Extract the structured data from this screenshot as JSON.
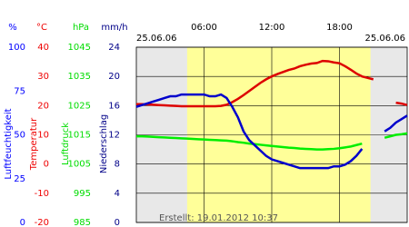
{
  "chart_data": {
    "type": "line",
    "date_left": "25.06.06",
    "date_right": "25.06.06",
    "created": "Erstellt: 19.01.2012 10:37",
    "xlim": [
      0,
      24
    ],
    "xticks": [
      {
        "value": 6,
        "label": "06:00"
      },
      {
        "value": 12,
        "label": "12:00"
      },
      {
        "value": 18,
        "label": "18:00"
      }
    ],
    "daylight": [
      4.5,
      20.75
    ],
    "axes": [
      {
        "unit": "%",
        "label": "Luftfeuchtigkeit",
        "color": "#0000ff",
        "ylim": [
          0,
          100
        ],
        "yticks": [
          0,
          25,
          50,
          75,
          100
        ]
      },
      {
        "unit": "°C",
        "label": "Temperatur",
        "color": "#ee0000",
        "ylim": [
          -20,
          40
        ],
        "yticks": [
          -20,
          -10,
          0,
          10,
          20,
          30,
          40
        ]
      },
      {
        "unit": "hPa",
        "label": "Luftdruck",
        "color": "#00dd00",
        "ylim": [
          985,
          1045
        ],
        "yticks": [
          985,
          995,
          1005,
          1015,
          1025,
          1035,
          1045
        ]
      },
      {
        "unit": "mm/h",
        "label": "Niederschlag",
        "color": "#000088",
        "ylim": [
          0,
          24
        ],
        "yticks": [
          0,
          4,
          8,
          12,
          16,
          20,
          24
        ]
      }
    ],
    "x": [
      0,
      0.5,
      1,
      1.5,
      2,
      2.5,
      3,
      3.5,
      4,
      4.5,
      5,
      5.5,
      6,
      6.5,
      7,
      7.5,
      8,
      8.5,
      9,
      9.5,
      10,
      10.5,
      11,
      11.5,
      12,
      12.5,
      13,
      13.5,
      14,
      14.5,
      15,
      15.5,
      16,
      16.5,
      17,
      17.5,
      18,
      18.5,
      19,
      19.5,
      20,
      20.5,
      21,
      21.5,
      22,
      22.5,
      23,
      23.5,
      24
    ],
    "series": [
      {
        "axis": 1,
        "color": "#dd0000",
        "values": [
          20.5,
          20.5,
          20.4,
          20.3,
          20.2,
          20.1,
          20,
          19.9,
          19.8,
          19.8,
          19.8,
          19.8,
          19.8,
          19.8,
          19.8,
          19.9,
          20.3,
          21.2,
          22.3,
          23.6,
          25,
          26.4,
          27.8,
          29,
          30,
          30.8,
          31.5,
          32.2,
          32.7,
          33.5,
          34,
          34.4,
          34.6,
          35.3,
          35.2,
          34.8,
          34.5,
          33.5,
          32.3,
          31,
          30,
          29.5,
          29,
          null,
          null,
          null,
          21,
          20.7,
          20.2
        ]
      },
      {
        "axis": 2,
        "color": "#00ee00",
        "values": [
          1014.5,
          1014.5,
          1014.4,
          1014.3,
          1014.2,
          1014.1,
          1014,
          1013.9,
          1013.8,
          1013.7,
          1013.6,
          1013.5,
          1013.4,
          1013.3,
          1013.2,
          1013.1,
          1013,
          1012.8,
          1012.5,
          1012.3,
          1012,
          1011.8,
          1011.6,
          1011.4,
          1011.2,
          1011,
          1010.8,
          1010.6,
          1010.5,
          1010.3,
          1010.2,
          1010.1,
          1010,
          1010,
          1010.1,
          1010.2,
          1010.4,
          1010.7,
          1011,
          1011.5,
          1012,
          null,
          null,
          null,
          1014,
          1014.5,
          1015,
          1015.2,
          1015.5
        ]
      },
      {
        "axis": 0,
        "color": "#0000cc",
        "values": [
          66,
          67,
          68,
          69,
          70,
          71,
          72,
          72,
          73,
          73,
          73,
          73,
          73,
          72,
          72,
          73,
          71,
          66,
          60,
          52,
          47,
          44,
          41,
          38,
          36,
          35,
          34,
          33,
          32,
          31,
          31,
          31,
          31,
          31,
          31,
          32,
          32,
          33,
          35,
          38,
          42,
          null,
          null,
          null,
          52,
          54,
          57,
          59,
          61
        ]
      }
    ]
  }
}
